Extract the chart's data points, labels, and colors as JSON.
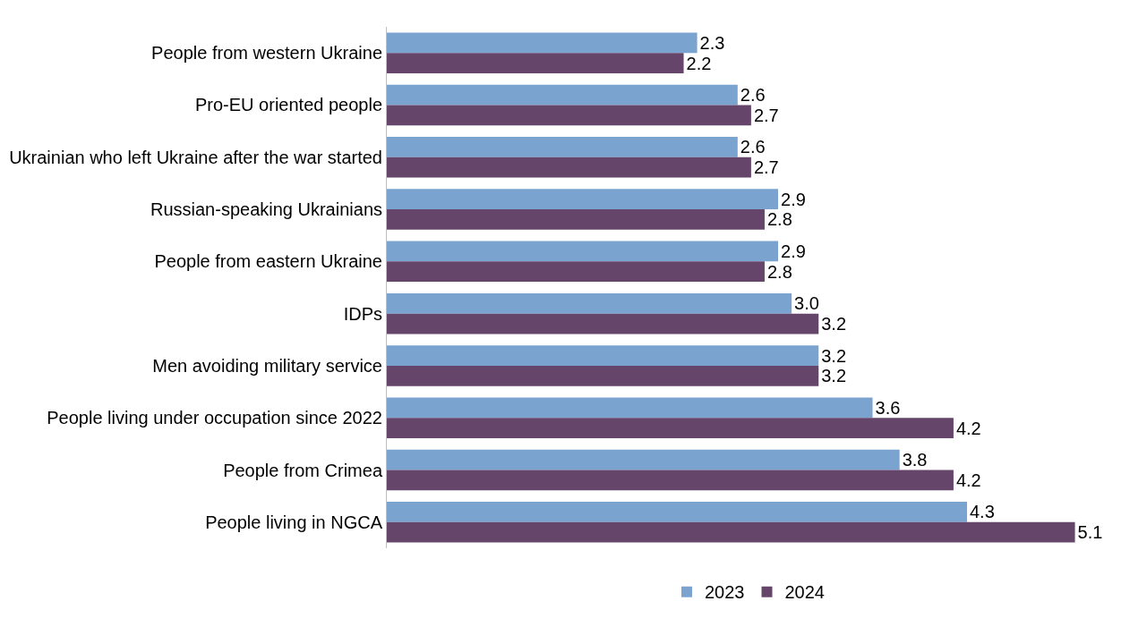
{
  "chart_data": {
    "type": "bar",
    "orientation": "horizontal",
    "categories": [
      "People from western Ukraine",
      "Pro-EU oriented people",
      "Ukrainian who left Ukraine after the war started",
      "Russian-speaking Ukrainians",
      "People from eastern Ukraine",
      "IDPs",
      "Men avoiding military service",
      "People living under occupation since 2022",
      "People from Crimea",
      "People living in NGCA"
    ],
    "series": [
      {
        "name": "2023",
        "color": "#7ba3d0",
        "values": [
          2.3,
          2.6,
          2.6,
          2.9,
          2.9,
          3.0,
          3.2,
          3.6,
          3.8,
          4.3
        ],
        "value_labels": [
          "2.3",
          "2.6",
          "2.6",
          "2.9",
          "2.9",
          "3.0",
          "3.2",
          "3.6",
          "3.8",
          "4.3"
        ]
      },
      {
        "name": "2024",
        "color": "#66456b",
        "values": [
          2.2,
          2.7,
          2.7,
          2.8,
          2.8,
          3.2,
          3.2,
          4.2,
          4.2,
          5.1
        ],
        "value_labels": [
          "2.2",
          "2.7",
          "2.7",
          "2.8",
          "2.8",
          "3.2",
          "3.2",
          "4.2",
          "4.2",
          "5.1"
        ]
      }
    ],
    "data_labels": true,
    "legend": "bottom",
    "grid": false
  }
}
